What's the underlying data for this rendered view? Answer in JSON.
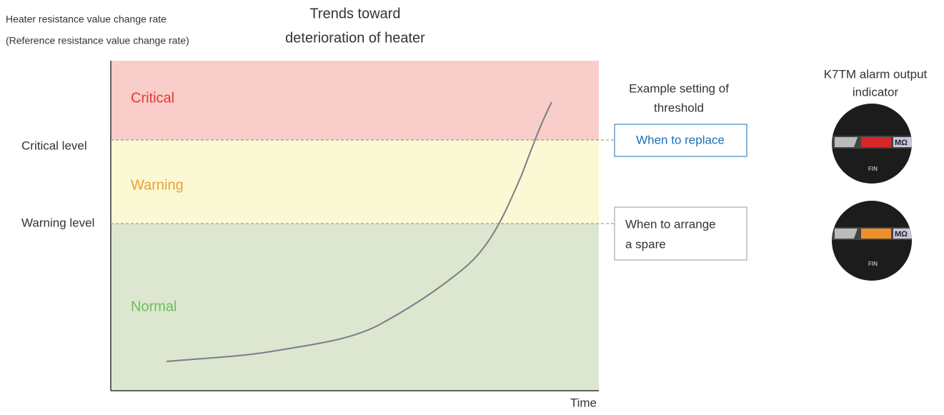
{
  "header": {
    "title": [
      "Trends toward",
      "deterioration of heater"
    ],
    "y_axis_label": [
      "Heater resistance value change rate",
      "(Reference resistance value change rate)"
    ],
    "x_axis_label": "Time"
  },
  "zones": [
    {
      "label": "Critical"
    },
    {
      "label": "Warning"
    },
    {
      "label": "Normal"
    }
  ],
  "levels": [
    "Critical level",
    "Warning level"
  ],
  "thresholds": {
    "title": [
      "Example setting of",
      "threshold"
    ],
    "items": [
      [
        "When to replace"
      ],
      [
        "When to arrange",
        "a spare"
      ]
    ]
  },
  "indicator": {
    "title": [
      "K7TM alarm output",
      "indicator"
    ],
    "unit": "MΩ",
    "badge": "FIN"
  }
}
